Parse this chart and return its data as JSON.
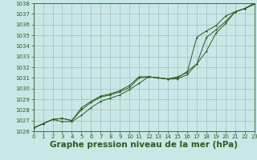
{
  "background_color": "#c8e8e8",
  "grid_color": "#b0d0d0",
  "line_color": "#2d5a1b",
  "text_color": "#2d5a1b",
  "title": "Graphe pression niveau de la mer (hPa)",
  "xlim": [
    0,
    23
  ],
  "ylim": [
    1026,
    1038
  ],
  "yticks": [
    1026,
    1027,
    1028,
    1029,
    1030,
    1031,
    1032,
    1033,
    1034,
    1035,
    1036,
    1037,
    1038
  ],
  "xticks": [
    0,
    1,
    2,
    3,
    4,
    5,
    6,
    7,
    8,
    9,
    10,
    11,
    12,
    13,
    14,
    15,
    16,
    17,
    18,
    19,
    20,
    21,
    22,
    23
  ],
  "series_a": [
    1026.3,
    1026.7,
    1027.1,
    1026.9,
    1026.9,
    1027.5,
    1028.2,
    1028.8,
    1029.1,
    1029.4,
    1029.9,
    1030.5,
    1031.1,
    1031.0,
    1030.9,
    1030.9,
    1031.3,
    1032.3,
    1033.5,
    1035.2,
    1036.1,
    1037.2,
    1037.5,
    1037.9
  ],
  "series_b": [
    1026.3,
    1026.7,
    1027.1,
    1027.2,
    1027.0,
    1028.0,
    1028.7,
    1029.2,
    1029.4,
    1029.7,
    1030.1,
    1031.0,
    1031.1,
    1031.0,
    1030.9,
    1031.0,
    1031.6,
    1032.3,
    1034.8,
    1035.5,
    1036.3,
    1037.2,
    1037.5,
    1038.0
  ],
  "series_c": [
    1026.3,
    1026.7,
    1027.1,
    1027.2,
    1027.0,
    1028.2,
    1028.8,
    1029.3,
    1029.5,
    1029.8,
    1030.3,
    1031.1,
    1031.1,
    1031.0,
    1030.9,
    1031.1,
    1031.5,
    1034.8,
    1035.4,
    1035.9,
    1036.8,
    1037.2,
    1037.5,
    1038.0
  ],
  "title_fontsize": 7.5,
  "tick_fontsize": 5.0
}
